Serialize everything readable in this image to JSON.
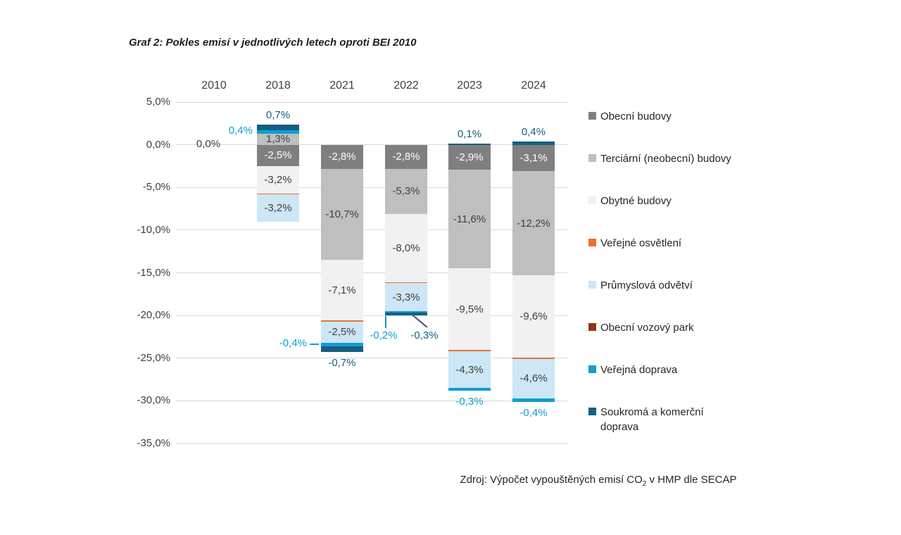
{
  "title": "Graf 2: Pokles emisí v jednotlivých letech oproti BEI 2010",
  "source": {
    "prefix": "Zdroj: Výpočet vypouštěných emisí CO",
    "sub": "2",
    "suffix": " v HMP dle SECAP"
  },
  "colors": {
    "obecni": "#7F7F7F",
    "terciarni": "#BFBFBF",
    "obytne": "#F1F1F1",
    "osvetleni": "#E97132",
    "prumyslova": "#CDE7F6",
    "vozovy": "#8B3A10",
    "verejna": "#0F9ED5",
    "soukroma": "#156082",
    "label_dark": "#404040",
    "label_white": "#FFFFFF",
    "grid": "#D9D9D9",
    "sky": "#0F9ED5",
    "navy": "#156082",
    "dark": "#404040"
  },
  "legend": [
    {
      "key": "obecni",
      "label": "Obecní budovy"
    },
    {
      "key": "terciarni",
      "label": "Terciární (neobecní) budovy"
    },
    {
      "key": "obytne",
      "label": "Obytné budovy"
    },
    {
      "key": "osvetleni",
      "label": "Veřejné osvětlení"
    },
    {
      "key": "prumyslova",
      "label": "Průmyslová odvětví"
    },
    {
      "key": "vozovy",
      "label": "Obecní vozový park"
    },
    {
      "key": "verejna",
      "label": "Veřejná doprava"
    },
    {
      "key": "soukroma",
      "label": "Soukromá a komerční doprava"
    }
  ],
  "chart_data": {
    "type": "bar",
    "subtype": "stacked",
    "title": "Graf 2: Pokles emisí v jednotlivých letech oproti BEI 2010",
    "xlabel": "",
    "ylabel": "",
    "ylim": [
      -35,
      5
    ],
    "y_ticks": [
      "5,0%",
      "0,0%",
      "-5,0%",
      "-10,0%",
      "-15,0%",
      "-20,0%",
      "-25,0%",
      "-30,0%",
      "-35,0%"
    ],
    "categories": [
      "2010",
      "2018",
      "2021",
      "2022",
      "2023",
      "2024"
    ],
    "series_order": [
      "Obecní budovy",
      "Terciární (neobecní) budovy",
      "Obytné budovy",
      "Veřejné osvětlení",
      "Průmyslová odvětví",
      "Obecní vozový park",
      "Veřejná doprava",
      "Soukromá a komerční doprava"
    ],
    "legend_position": "right",
    "grid": true,
    "bars": [
      {
        "year": "2010",
        "segments": [],
        "outside_labels": [
          {
            "text": "0,0%",
            "color": "dark",
            "pos": "zero"
          }
        ]
      },
      {
        "year": "2018",
        "segments": [
          {
            "series": "Terciární (neobecní) budovy",
            "key": "terciarni",
            "value": 1.3,
            "label": "1,3%",
            "label_color": "dark"
          },
          {
            "series": "Veřejná doprava",
            "key": "verejna",
            "value": 0.4
          },
          {
            "series": "Soukromá a komerční doprava",
            "key": "soukroma",
            "value": 0.7
          },
          {
            "series": "Obecní budovy",
            "key": "obecni",
            "value": -2.5,
            "label": "-2,5%",
            "label_color": "white"
          },
          {
            "series": "Obytné budovy",
            "key": "obytne",
            "value": -3.2,
            "label": "-3,2%",
            "label_color": "dark"
          },
          {
            "series": "Veřejné osvětlení",
            "key": "osvetleni",
            "value": -0.1
          },
          {
            "series": "Průmyslová odvětví",
            "key": "prumyslova",
            "value": -3.2,
            "label": "-3,2%",
            "label_color": "dark"
          }
        ],
        "outside_labels": [
          {
            "text": "0,7%",
            "color": "navy",
            "pos": "above"
          },
          {
            "text": "0,4%",
            "color": "sky",
            "pos": "left",
            "anchor_pct": 1.5
          }
        ]
      },
      {
        "year": "2021",
        "segments": [
          {
            "series": "Obecní budovy",
            "key": "obecni",
            "value": -2.8,
            "label": "-2,8%",
            "label_color": "white"
          },
          {
            "series": "Terciární (neobecní) budovy",
            "key": "terciarni",
            "value": -10.7,
            "label": "-10,7%",
            "label_color": "dark"
          },
          {
            "series": "Obytné budovy",
            "key": "obytne",
            "value": -7.1,
            "label": "-7,1%",
            "label_color": "dark"
          },
          {
            "series": "Veřejné osvětlení",
            "key": "osvetleni",
            "value": -0.1
          },
          {
            "series": "Průmyslová odvětví",
            "key": "prumyslova",
            "value": -2.5,
            "label": "-2,5%",
            "label_color": "dark"
          },
          {
            "series": "Veřejná doprava",
            "key": "verejna",
            "value": -0.4
          },
          {
            "series": "Soukromá a komerční doprava",
            "key": "soukroma",
            "value": -0.7
          }
        ],
        "outside_labels": [
          {
            "text": "-0,4%",
            "color": "sky",
            "pos": "left",
            "anchor_pct": -23.4,
            "leader": "dash"
          },
          {
            "text": "-0,7%",
            "color": "navy",
            "pos": "below"
          }
        ]
      },
      {
        "year": "2022",
        "segments": [
          {
            "series": "Obecní budovy",
            "key": "obecni",
            "value": -2.8,
            "label": "-2,8%",
            "label_color": "white"
          },
          {
            "series": "Terciární (neobecní) budovy",
            "key": "terciarni",
            "value": -5.3,
            "label": "-5,3%",
            "label_color": "dark"
          },
          {
            "series": "Obytné budovy",
            "key": "obytne",
            "value": -8.0,
            "label": "-8,0%",
            "label_color": "dark"
          },
          {
            "series": "Veřejné osvětlení",
            "key": "osvetleni",
            "value": -0.1
          },
          {
            "series": "Průmyslová odvětví",
            "key": "prumyslova",
            "value": -3.3,
            "label": "-3,3%",
            "label_color": "dark"
          },
          {
            "series": "Veřejná doprava",
            "key": "verejna",
            "value": -0.2
          },
          {
            "series": "Soukromá a komerční doprava",
            "key": "soukroma",
            "value": -0.3
          }
        ],
        "outside_labels": [
          {
            "text": "-0,2%",
            "color": "sky",
            "pos": "below-left",
            "leader": "vline"
          },
          {
            "text": "-0,3%",
            "color": "navy",
            "pos": "below-right",
            "leader": "diag"
          }
        ]
      },
      {
        "year": "2023",
        "segments": [
          {
            "series": "Soukromá a komerční doprava",
            "key": "soukroma",
            "value": 0.1
          },
          {
            "series": "Obecní budovy",
            "key": "obecni",
            "value": -2.9,
            "label": "-2,9%",
            "label_color": "white"
          },
          {
            "series": "Terciární (neobecní) budovy",
            "key": "terciarni",
            "value": -11.6,
            "label": "-11,6%",
            "label_color": "dark"
          },
          {
            "series": "Obytné budovy",
            "key": "obytne",
            "value": -9.5,
            "label": "-9,5%",
            "label_color": "dark"
          },
          {
            "series": "Veřejné osvětlení",
            "key": "osvetleni",
            "value": -0.2
          },
          {
            "series": "Průmyslová odvětví",
            "key": "prumyslova",
            "value": -4.3,
            "label": "-4,3%",
            "label_color": "dark"
          },
          {
            "series": "Veřejná doprava",
            "key": "verejna",
            "value": -0.3
          }
        ],
        "outside_labels": [
          {
            "text": "0,1%",
            "color": "navy",
            "pos": "above"
          },
          {
            "text": "-0,3%",
            "color": "sky",
            "pos": "below"
          }
        ]
      },
      {
        "year": "2024",
        "segments": [
          {
            "series": "Soukromá a komerční doprava",
            "key": "soukroma",
            "value": 0.4
          },
          {
            "series": "Obecní budovy",
            "key": "obecni",
            "value": -3.1,
            "label": "-3,1%",
            "label_color": "white"
          },
          {
            "series": "Terciární (neobecní) budovy",
            "key": "terciarni",
            "value": -12.2,
            "label": "-12,2%",
            "label_color": "dark"
          },
          {
            "series": "Obytné budovy",
            "key": "obytne",
            "value": -9.6,
            "label": "-9,6%",
            "label_color": "dark"
          },
          {
            "series": "Veřejné osvětlení",
            "key": "osvetleni",
            "value": -0.2
          },
          {
            "series": "Průmyslová odvětví",
            "key": "prumyslova",
            "value": -4.6,
            "label": "-4,6%",
            "label_color": "dark"
          },
          {
            "series": "Veřejná doprava",
            "key": "verejna",
            "value": -0.4
          }
        ],
        "outside_labels": [
          {
            "text": "0,4%",
            "color": "navy",
            "pos": "above"
          },
          {
            "text": "-0,4%",
            "color": "sky",
            "pos": "below"
          }
        ]
      }
    ]
  }
}
